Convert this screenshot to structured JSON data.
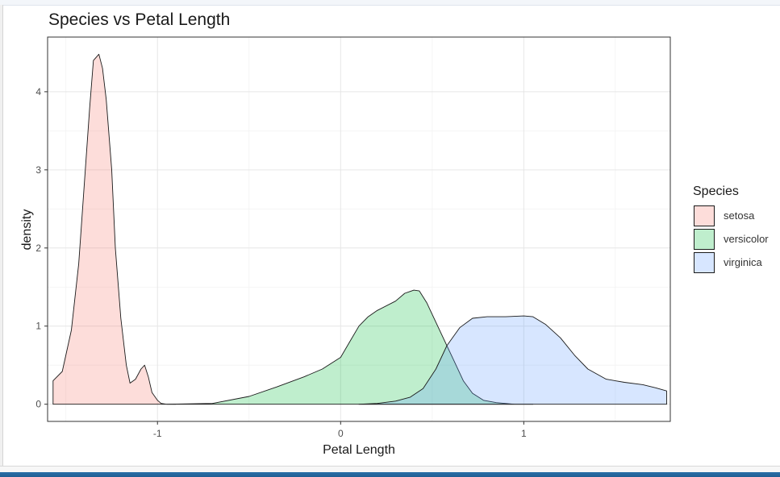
{
  "chart_data": {
    "type": "area",
    "title": "Species vs Petal Length",
    "xlabel": "Petal Length",
    "ylabel": "density",
    "xlim": [
      -1.6,
      1.8
    ],
    "ylim": [
      -0.22,
      4.7
    ],
    "x_ticks": [
      -1,
      0,
      1
    ],
    "x_tick_labels": [
      "-1",
      "0",
      "1"
    ],
    "y_ticks": [
      0,
      1,
      2,
      3,
      4
    ],
    "y_tick_labels": [
      "0",
      "1",
      "2",
      "3",
      "4"
    ],
    "grid": true,
    "legend": {
      "title": "Species",
      "position": "right"
    },
    "series": [
      {
        "name": "setosa",
        "fill": "#F8766D",
        "x": [
          -1.57,
          -1.52,
          -1.47,
          -1.43,
          -1.4,
          -1.37,
          -1.35,
          -1.32,
          -1.3,
          -1.28,
          -1.25,
          -1.23,
          -1.2,
          -1.17,
          -1.15,
          -1.12,
          -1.09,
          -1.07,
          -1.05,
          -1.03,
          -1.0,
          -0.98,
          -0.95,
          -0.9
        ],
        "y": [
          0.3,
          0.42,
          0.95,
          1.8,
          2.8,
          3.8,
          4.4,
          4.48,
          4.3,
          3.9,
          3.0,
          2.0,
          1.1,
          0.5,
          0.27,
          0.32,
          0.45,
          0.5,
          0.35,
          0.15,
          0.05,
          0.01,
          0.0,
          0.0
        ]
      },
      {
        "name": "versicolor",
        "fill": "#00BA38",
        "x": [
          -0.95,
          -0.7,
          -0.5,
          -0.35,
          -0.2,
          -0.1,
          0.0,
          0.05,
          0.1,
          0.15,
          0.2,
          0.3,
          0.35,
          0.4,
          0.43,
          0.47,
          0.52,
          0.57,
          0.62,
          0.67,
          0.72,
          0.78,
          0.85,
          0.95,
          1.05
        ],
        "y": [
          0.0,
          0.01,
          0.1,
          0.22,
          0.35,
          0.45,
          0.6,
          0.8,
          1.0,
          1.12,
          1.2,
          1.32,
          1.42,
          1.46,
          1.45,
          1.3,
          1.05,
          0.8,
          0.55,
          0.3,
          0.14,
          0.05,
          0.02,
          0.0,
          0.0
        ]
      },
      {
        "name": "virginica",
        "fill": "#619CFF",
        "x": [
          0.1,
          0.2,
          0.3,
          0.38,
          0.45,
          0.52,
          0.58,
          0.65,
          0.72,
          0.8,
          0.9,
          1.0,
          1.05,
          1.12,
          1.2,
          1.28,
          1.35,
          1.45,
          1.55,
          1.65,
          1.72,
          1.78
        ],
        "y": [
          0.0,
          0.01,
          0.04,
          0.09,
          0.2,
          0.45,
          0.75,
          0.98,
          1.1,
          1.12,
          1.12,
          1.13,
          1.12,
          1.02,
          0.85,
          0.62,
          0.45,
          0.32,
          0.28,
          0.25,
          0.21,
          0.17
        ]
      }
    ]
  }
}
